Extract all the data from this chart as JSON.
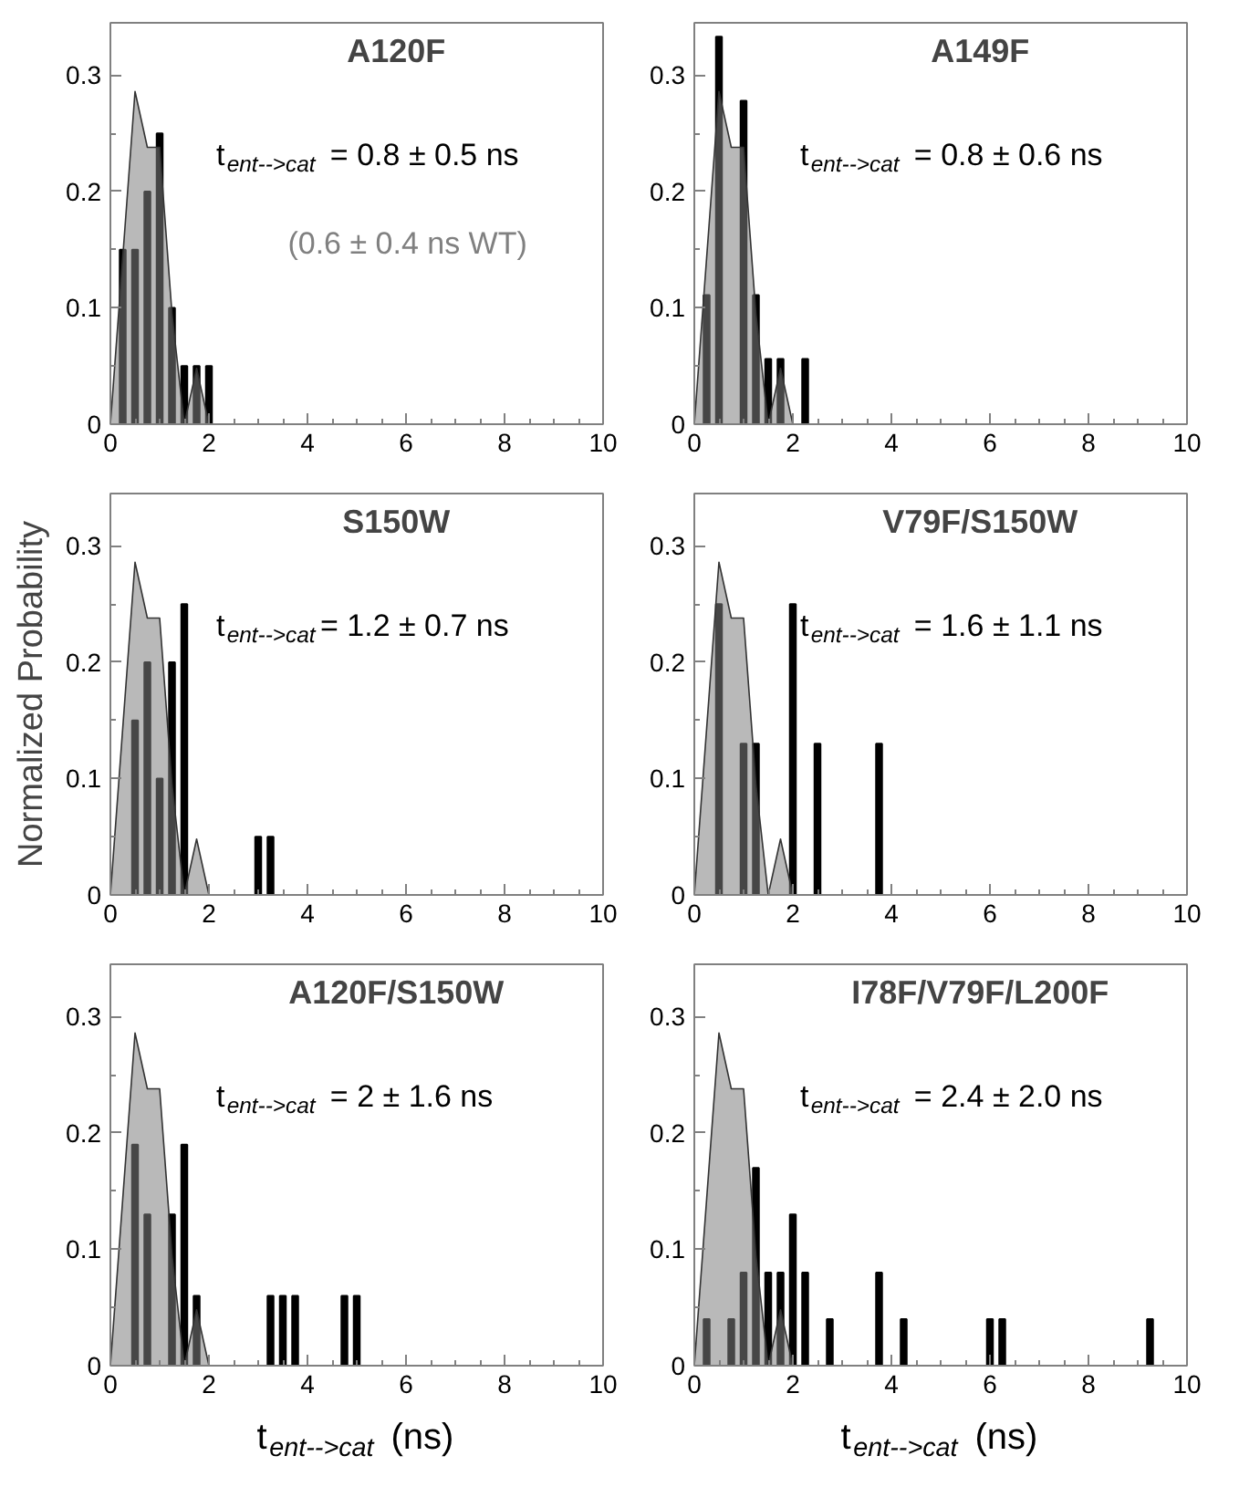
{
  "chart_data": [
    {
      "type": "bar",
      "title": "A120F",
      "xlim": [
        0,
        10
      ],
      "ylim": [
        0,
        0.345
      ],
      "xticks": [
        0,
        2,
        4,
        6,
        8,
        10
      ],
      "yticks": [
        0,
        0.1,
        0.2,
        0.3
      ],
      "annotations": [
        "t$_{ent-->cat}$ = 0.8 ± 0.5 ns",
        "(0.6 ± 0.4 ns WT)"
      ],
      "series": [
        {
          "type": "area",
          "color": "#808080",
          "x": [
            0,
            0.25,
            0.5,
            0.75,
            1.0,
            1.25,
            1.5,
            1.75,
            2.0
          ],
          "values": [
            0,
            0.143,
            0.286,
            0.238,
            0.238,
            0.095,
            0,
            0.048,
            0
          ]
        },
        {
          "color": "#000000",
          "x": [
            0.25,
            0.5,
            0.75,
            1.0,
            1.25,
            1.5,
            1.75,
            2.0
          ],
          "values": [
            0.15,
            0.15,
            0.2,
            0.25,
            0.1,
            0.05,
            0.05,
            0.05
          ]
        }
      ]
    },
    {
      "type": "bar",
      "title": "A149F",
      "xlim": [
        0,
        10
      ],
      "ylim": [
        0,
        0.345
      ],
      "xticks": [
        0,
        2,
        4,
        6,
        8,
        10
      ],
      "yticks": [
        0,
        0.1,
        0.2,
        0.3
      ],
      "annotations": [
        "t$_{ent-->cat}$ = 0.8 ± 0.6 ns"
      ],
      "series": [
        {
          "type": "area",
          "color": "#808080",
          "x": [
            0,
            0.25,
            0.5,
            0.75,
            1.0,
            1.25,
            1.5,
            1.75,
            2.0
          ],
          "values": [
            0,
            0.143,
            0.286,
            0.238,
            0.238,
            0.095,
            0,
            0.048,
            0
          ]
        },
        {
          "color": "#000000",
          "x": [
            0.25,
            0.5,
            1.0,
            1.25,
            1.5,
            1.75,
            2.25
          ],
          "values": [
            0.111,
            0.333,
            0.278,
            0.111,
            0.056,
            0.056,
            0.056
          ]
        }
      ]
    },
    {
      "type": "bar",
      "title": "S150W",
      "ylabel": "Normalized Probability",
      "xlim": [
        0,
        10
      ],
      "ylim": [
        0,
        0.345
      ],
      "xticks": [
        0,
        2,
        4,
        6,
        8,
        10
      ],
      "yticks": [
        0,
        0.1,
        0.2,
        0.3
      ],
      "annotations": [
        "t$_{ent-->cat}$= 1.2 ± 0.7 ns"
      ],
      "series": [
        {
          "type": "area",
          "color": "#808080",
          "x": [
            0,
            0.25,
            0.5,
            0.75,
            1.0,
            1.25,
            1.5,
            1.75,
            2.0
          ],
          "values": [
            0,
            0.143,
            0.286,
            0.238,
            0.238,
            0.095,
            0,
            0.048,
            0
          ]
        },
        {
          "color": "#000000",
          "x": [
            0.5,
            0.75,
            1.0,
            1.25,
            1.5,
            3.0,
            3.25
          ],
          "values": [
            0.15,
            0.2,
            0.1,
            0.2,
            0.25,
            0.05,
            0.05
          ]
        }
      ]
    },
    {
      "type": "bar",
      "title": "V79F/S150W",
      "xlim": [
        0,
        10
      ],
      "ylim": [
        0,
        0.345
      ],
      "xticks": [
        0,
        2,
        4,
        6,
        8,
        10
      ],
      "yticks": [
        0,
        0.1,
        0.2,
        0.3
      ],
      "annotations": [
        "t$_{ent-->cat}$ = 1.6 ± 1.1 ns"
      ],
      "series": [
        {
          "type": "area",
          "color": "#808080",
          "x": [
            0,
            0.25,
            0.5,
            0.75,
            1.0,
            1.25,
            1.5,
            1.75,
            2.0
          ],
          "values": [
            0,
            0.143,
            0.286,
            0.238,
            0.238,
            0.095,
            0,
            0.048,
            0
          ]
        },
        {
          "color": "#000000",
          "x": [
            0.5,
            1.0,
            1.25,
            2.0,
            2.5,
            3.75
          ],
          "values": [
            0.25,
            0.13,
            0.13,
            0.25,
            0.13,
            0.13
          ]
        }
      ]
    },
    {
      "type": "bar",
      "title": "A120F/S150W",
      "xlabel": "t$_{ent-->cat}$ (ns)",
      "xlim": [
        0,
        10
      ],
      "ylim": [
        0,
        0.345
      ],
      "xticks": [
        0,
        2,
        4,
        6,
        8,
        10
      ],
      "yticks": [
        0,
        0.1,
        0.2,
        0.3
      ],
      "annotations": [
        "t$_{ent-->cat}$ = 2 ± 1.6 ns"
      ],
      "series": [
        {
          "type": "area",
          "color": "#808080",
          "x": [
            0,
            0.25,
            0.5,
            0.75,
            1.0,
            1.25,
            1.5,
            1.75,
            2.0
          ],
          "values": [
            0,
            0.143,
            0.286,
            0.238,
            0.238,
            0.095,
            0,
            0.048,
            0
          ]
        },
        {
          "color": "#000000",
          "x": [
            0.5,
            0.75,
            1.25,
            1.5,
            1.75,
            3.25,
            3.5,
            3.75,
            4.75,
            5.0
          ],
          "values": [
            0.19,
            0.13,
            0.13,
            0.19,
            0.06,
            0.06,
            0.06,
            0.06,
            0.06,
            0.06
          ]
        }
      ]
    },
    {
      "type": "bar",
      "title": "I78F/V79F/L200F",
      "xlabel": "t$_{ent-->cat}$ (ns)",
      "xlim": [
        0,
        10
      ],
      "ylim": [
        0,
        0.345
      ],
      "xticks": [
        0,
        2,
        4,
        6,
        8,
        10
      ],
      "yticks": [
        0,
        0.1,
        0.2,
        0.3
      ],
      "annotations": [
        "t$_{ent-->cat}$ = 2.4 ± 2.0 ns"
      ],
      "series": [
        {
          "type": "area",
          "color": "#808080",
          "x": [
            0,
            0.25,
            0.5,
            0.75,
            1.0,
            1.25,
            1.5,
            1.75,
            2.0
          ],
          "values": [
            0,
            0.143,
            0.286,
            0.238,
            0.238,
            0.095,
            0,
            0.048,
            0
          ]
        },
        {
          "color": "#000000",
          "x": [
            0.25,
            0.75,
            1.0,
            1.25,
            1.5,
            1.75,
            2.0,
            2.25,
            2.75,
            3.75,
            4.25,
            6.0,
            6.25,
            9.25
          ],
          "values": [
            0.04,
            0.04,
            0.08,
            0.17,
            0.08,
            0.08,
            0.13,
            0.08,
            0.04,
            0.08,
            0.04,
            0.04,
            0.04,
            0.04
          ]
        }
      ]
    }
  ]
}
